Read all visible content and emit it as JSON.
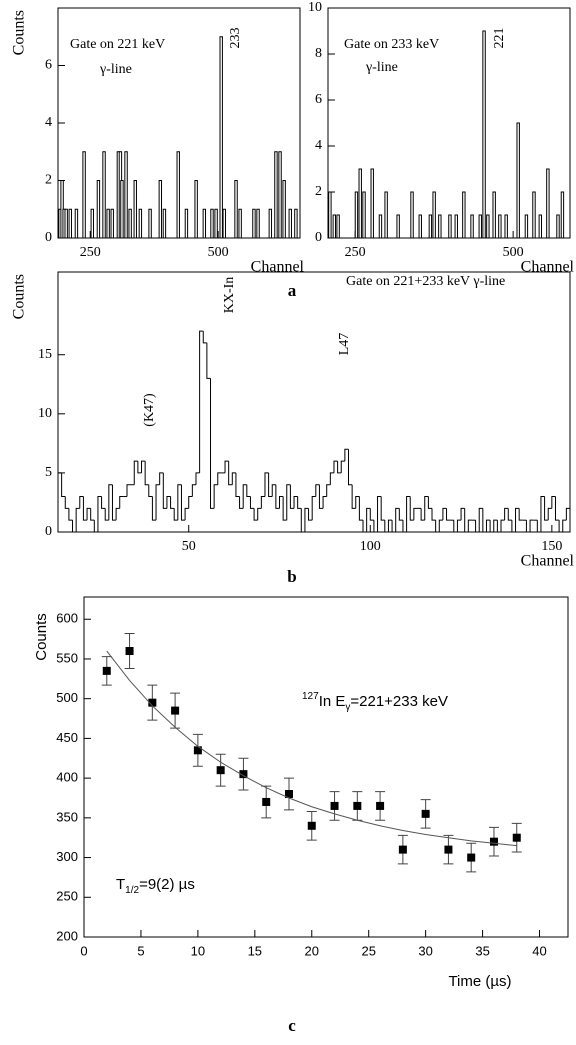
{
  "panel_labels": [
    "a",
    "b",
    "c"
  ],
  "chart_data": [
    {
      "type": "spike",
      "color": "#000000",
      "x": [
        191,
        195,
        199,
        203,
        211,
        223,
        238,
        254,
        266,
        277,
        285,
        293,
        305,
        309,
        312,
        320,
        328,
        338,
        348,
        367,
        387,
        395,
        422,
        438,
        457,
        473,
        488,
        496,
        506,
        512,
        535,
        543,
        570,
        578,
        602,
        613,
        621,
        629,
        641,
        652
      ],
      "values": [
        1,
        2,
        1,
        1,
        1,
        1,
        3,
        1,
        2,
        3,
        1,
        1,
        3,
        3,
        2,
        3,
        1,
        2,
        1,
        1,
        2,
        1,
        3,
        1,
        2,
        1,
        1,
        1,
        7,
        1,
        2,
        1,
        1,
        1,
        1,
        3,
        3,
        2,
        1,
        1
      ],
      "xlim": [
        187,
        660
      ],
      "ylim": [
        0,
        8
      ],
      "xticks": [
        250,
        500
      ],
      "yticks": [
        0,
        2,
        4,
        6
      ],
      "xlabel": "Channel",
      "ylabel": "Counts",
      "annotations": [
        "Gate on 221 keV",
        "γ-line",
        "233"
      ]
    },
    {
      "type": "spike",
      "color": "#000000",
      "x": [
        210,
        217,
        223,
        252,
        258,
        264,
        277,
        290,
        299,
        318,
        340,
        353,
        369,
        375,
        384,
        400,
        410,
        422,
        435,
        448,
        454,
        460,
        470,
        479,
        489,
        508,
        521,
        533,
        543,
        555,
        571,
        578
      ],
      "values": [
        2,
        1,
        1,
        2,
        3,
        2,
        3,
        1,
        2,
        1,
        2,
        1,
        1,
        2,
        1,
        1,
        1,
        2,
        1,
        1,
        9,
        1,
        2,
        1,
        1,
        5,
        1,
        2,
        1,
        3,
        1,
        2
      ],
      "xlim": [
        207,
        590
      ],
      "ylim": [
        0,
        10
      ],
      "xticks": [
        250,
        500
      ],
      "yticks": [
        0,
        2,
        4,
        6,
        8,
        10
      ],
      "xlabel": "Channel",
      "annotations": [
        "Gate on 233 keV",
        "γ-line",
        "221"
      ]
    },
    {
      "type": "histogram",
      "color": "#000000",
      "bins": [
        14,
        15,
        16,
        17,
        18,
        19,
        20,
        21,
        22,
        23,
        24,
        25,
        26,
        27,
        28,
        29,
        30,
        31,
        32,
        33,
        34,
        35,
        36,
        37,
        38,
        39,
        40,
        41,
        42,
        43,
        44,
        45,
        46,
        47,
        48,
        49,
        50,
        51,
        52,
        53,
        54,
        55,
        56,
        57,
        58,
        59,
        60,
        61,
        62,
        63,
        64,
        65,
        66,
        67,
        68,
        69,
        70,
        71,
        72,
        73,
        74,
        75,
        76,
        77,
        78,
        79,
        80,
        81,
        82,
        83,
        84,
        85,
        86,
        87,
        88,
        89,
        90,
        91,
        92,
        93,
        94,
        95,
        96,
        97,
        98,
        99,
        100,
        101,
        102,
        103,
        104,
        105,
        106,
        107,
        108,
        109,
        110,
        111,
        112,
        113,
        114,
        115,
        116,
        117,
        118,
        119,
        120,
        121,
        122,
        123,
        124,
        125,
        126,
        127,
        128,
        129,
        130,
        131,
        132,
        133,
        134,
        135,
        136,
        137,
        138,
        139,
        140,
        141,
        142,
        143,
        144,
        145,
        146,
        147,
        148,
        149,
        150,
        151,
        152,
        153,
        154,
        155
      ],
      "values": [
        5,
        3,
        2,
        1,
        0,
        2,
        3,
        1,
        2,
        1,
        0,
        3,
        2,
        1,
        4,
        1,
        2,
        3,
        3,
        4,
        4,
        6,
        5,
        6,
        4,
        3,
        1,
        4,
        5,
        2,
        3,
        2,
        1,
        4,
        1,
        2,
        3,
        4,
        5,
        17,
        16,
        13,
        2,
        4,
        5,
        5,
        6,
        4,
        5,
        3,
        2,
        4,
        3,
        2,
        1,
        2,
        3,
        5,
        3,
        4,
        2,
        3,
        1,
        4,
        2,
        3,
        2,
        0,
        2,
        1,
        3,
        4,
        2,
        3,
        4,
        5,
        6,
        5,
        6,
        7,
        4,
        2,
        3,
        1,
        0,
        2,
        1,
        0,
        3,
        1,
        0,
        1,
        0,
        2,
        1,
        0,
        3,
        1,
        2,
        2,
        1,
        3,
        2,
        1,
        0,
        1,
        2,
        1,
        1,
        0,
        1,
        2,
        0,
        1,
        1,
        0,
        2,
        0,
        1,
        0,
        1,
        0,
        1,
        2,
        1,
        0,
        2,
        1,
        1,
        0,
        1,
        1,
        0,
        3,
        1,
        2,
        3,
        1,
        0,
        1,
        2
      ],
      "xlim": [
        14,
        155
      ],
      "ylim": [
        0,
        22
      ],
      "xticks": [
        50,
        100,
        150
      ],
      "yticks": [
        0,
        5,
        10,
        15
      ],
      "xlabel": "Channel",
      "ylabel": "Counts",
      "annotations": [
        "Gate on 221+233 keV γ-line",
        "(K47)",
        "KX-In",
        "L47"
      ]
    },
    {
      "type": "scatter",
      "series": [
        {
          "color": "#000000",
          "marker": "square",
          "x": [
            2,
            4,
            6,
            8,
            10,
            12,
            14,
            16,
            18,
            20,
            22,
            24,
            26,
            28,
            30,
            32,
            34,
            36,
            38
          ],
          "values": [
            535,
            560,
            495,
            485,
            435,
            410,
            405,
            370,
            380,
            340,
            365,
            365,
            365,
            310,
            355,
            310,
            300,
            320,
            325
          ],
          "errors": [
            18,
            22,
            22,
            22,
            20,
            20,
            20,
            20,
            20,
            18,
            18,
            18,
            18,
            18,
            18,
            18,
            18,
            18,
            18
          ]
        },
        {
          "color": "#555555",
          "marker": "line",
          "x": [
            2,
            4,
            6,
            8,
            10,
            12,
            14,
            16,
            18,
            20,
            22,
            24,
            26,
            28,
            30,
            32,
            34,
            36,
            38
          ],
          "values": [
            560,
            523,
            491,
            464,
            440,
            420,
            403,
            388,
            375,
            364,
            355,
            347,
            340,
            334,
            329,
            325,
            321,
            318,
            315
          ]
        }
      ],
      "xlim": [
        0,
        42.5
      ],
      "ylim": [
        200,
        628
      ],
      "xticks": [
        0,
        5,
        10,
        15,
        20,
        25,
        30,
        35,
        40
      ],
      "yticks": [
        200,
        250,
        300,
        350,
        400,
        450,
        500,
        550,
        600
      ],
      "xlabel": "Time (µs)",
      "ylabel": "Counts",
      "annotations": [
        [
          "127",
          "In E",
          "γ",
          "=221+233 keV"
        ],
        [
          "T",
          "1/2",
          "=9(2) µs"
        ]
      ]
    }
  ]
}
